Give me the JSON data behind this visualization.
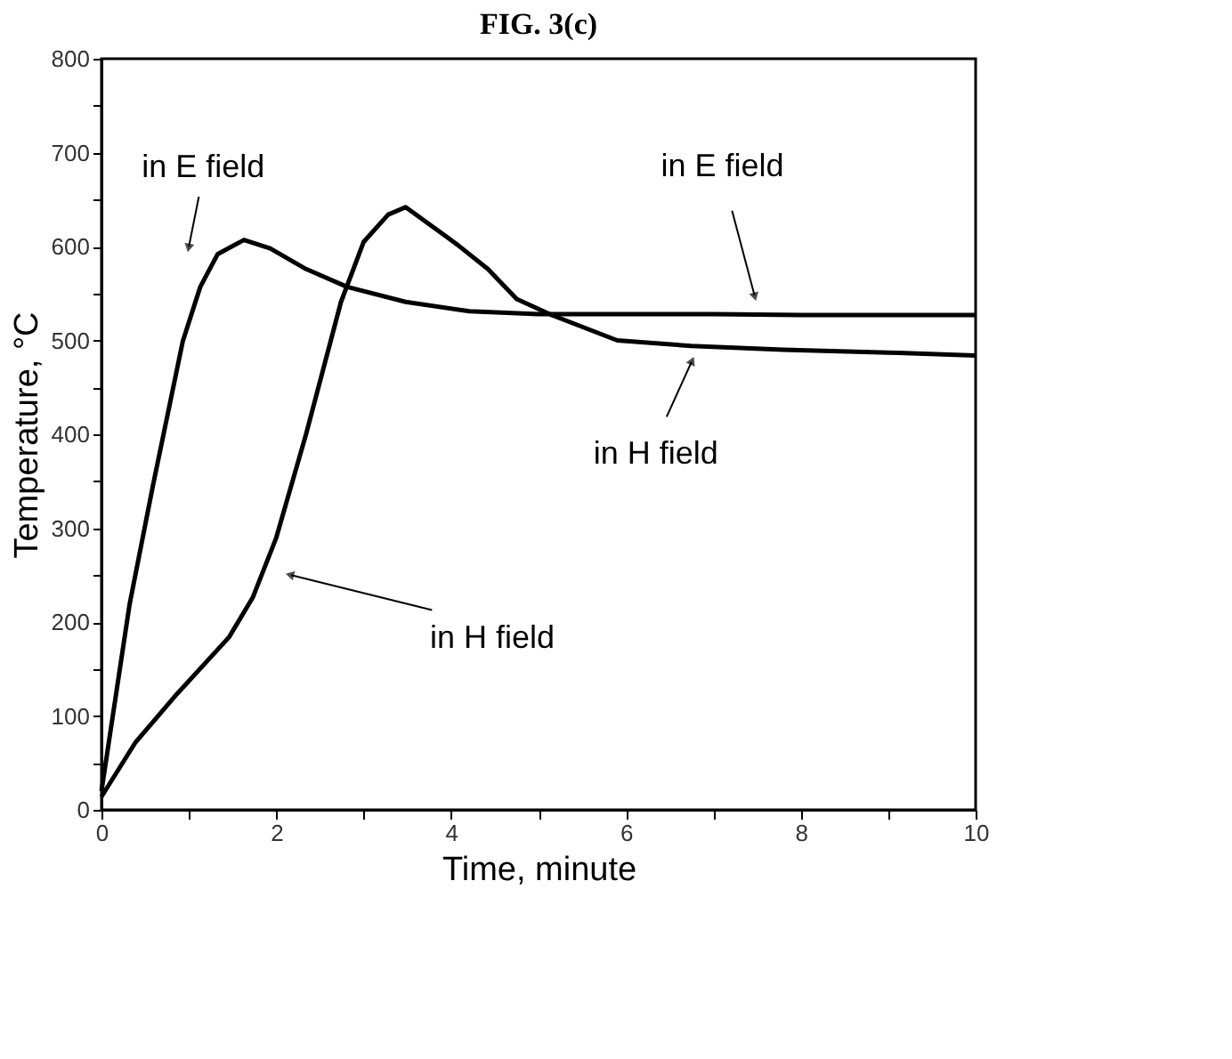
{
  "chart_data": {
    "type": "line",
    "title": "FIG. 3(c)",
    "xlabel": "Time, minute",
    "ylabel": "Temperature, °C",
    "xlim": [
      0,
      10
    ],
    "ylim": [
      0,
      800
    ],
    "xticks": [
      0,
      {
        "value": 1,
        "label": null
      },
      2,
      {
        "value": 3,
        "label": null
      },
      4,
      {
        "value": 5,
        "label": null
      },
      6,
      {
        "value": 7,
        "label": null
      },
      8,
      {
        "value": 9,
        "label": null
      },
      10
    ],
    "yticks": [
      0,
      {
        "value": 50,
        "label": null
      },
      100,
      {
        "value": 150,
        "label": null
      },
      200,
      {
        "value": 250,
        "label": null
      },
      300,
      {
        "value": 350,
        "label": null
      },
      400,
      {
        "value": 450,
        "label": null
      },
      500,
      {
        "value": 550,
        "label": null
      },
      600,
      {
        "value": 650,
        "label": null
      },
      700,
      {
        "value": 750,
        "label": null
      },
      800
    ],
    "grid": false,
    "legend": false,
    "marker": "none",
    "line_style": "solid",
    "series": [
      {
        "color": "#000000",
        "x": [
          0,
          0.32,
          0.59,
          0.93,
          1.13,
          1.33,
          1.63,
          1.93,
          2.34,
          2.81,
          3.48,
          4.21,
          5,
          6,
          7,
          8,
          9,
          10
        ],
        "values": [
          20,
          218,
          346,
          499,
          557,
          592,
          607,
          598,
          576,
          557,
          541,
          531,
          528,
          528,
          528,
          527,
          527,
          527
        ]
      },
      {
        "color": "#000000",
        "x": [
          0,
          0.39,
          0.86,
          1.46,
          1.73,
          2.0,
          2.34,
          2.74,
          3.0,
          3.28,
          3.48,
          4.07,
          4.42,
          4.75,
          5.15,
          5.9,
          6.75,
          7.8,
          9,
          10
        ],
        "values": [
          14,
          72,
          123,
          184,
          226,
          290,
          400,
          541,
          605,
          634,
          642,
          602,
          576,
          544,
          527,
          500,
          494,
          490,
          487,
          484
        ]
      }
    ],
    "annotations": [
      {
        "text": "in E field",
        "x": 1.0,
        "y": 600
      },
      {
        "text": "in E field",
        "x": 7.47,
        "y": 548
      },
      {
        "text": "in H field",
        "x": 2.17,
        "y": 250
      },
      {
        "text": "in H field",
        "x": 6.75,
        "y": 477
      }
    ]
  }
}
